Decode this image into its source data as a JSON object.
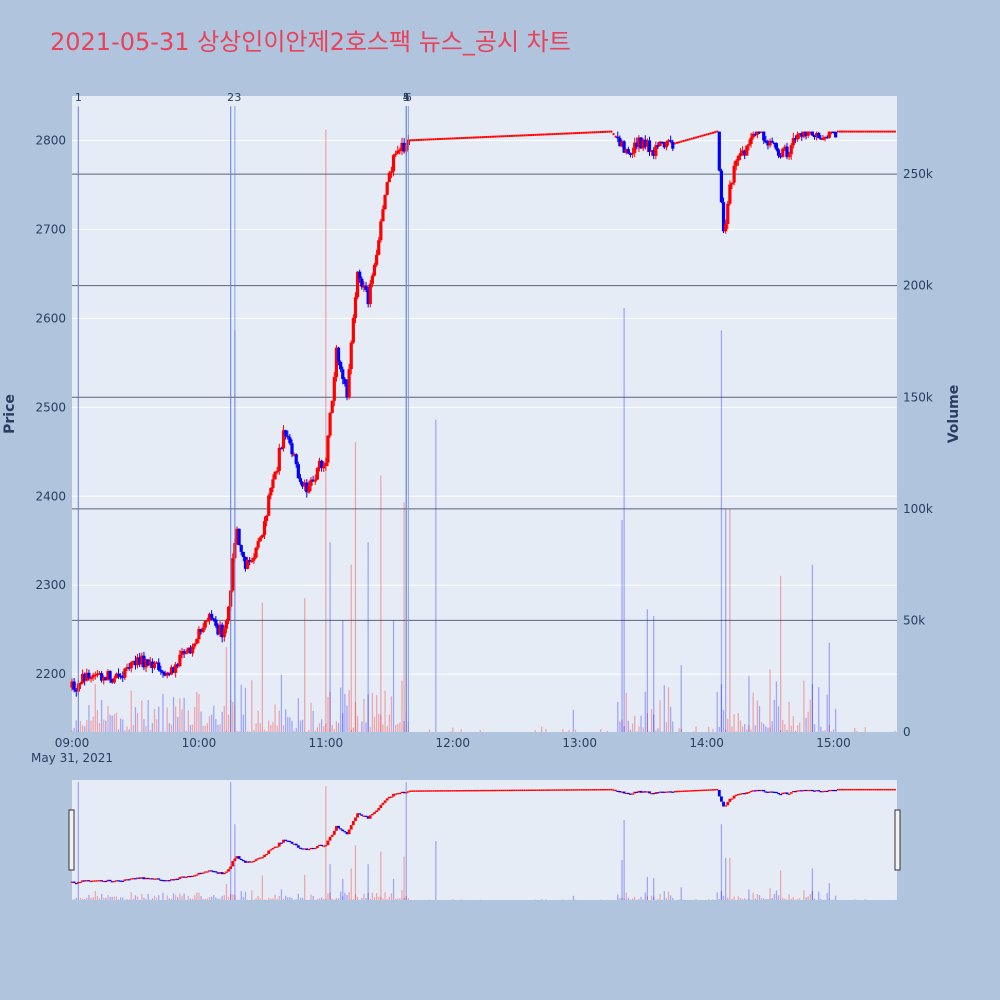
{
  "title": "2021-05-31 상상인이안제2호스팩 뉴스_공시 차트",
  "colors": {
    "background": "#b0c4de",
    "plot_bg": "#e5ecf6",
    "title": "#e8435a",
    "up": "#ff0000",
    "down": "#0000ff",
    "vol_up": "rgba(255,0,0,0.30)",
    "vol_down": "rgba(0,0,255,0.30)",
    "marker": "#6f8fd8"
  },
  "chart_data": {
    "type": "candlestick",
    "x_range": [
      "09:00",
      "15:30"
    ],
    "price_axis": {
      "label": "Price",
      "ticks": [
        2200,
        2300,
        2400,
        2500,
        2600,
        2700,
        2800
      ],
      "range": [
        2135,
        2850
      ]
    },
    "volume_axis": {
      "label": "Volume",
      "ticks": [
        "0",
        "50k",
        "100k",
        "150k",
        "200k",
        "250k"
      ],
      "tick_values": [
        0,
        50000,
        100000,
        150000,
        200000,
        250000
      ],
      "range": [
        0,
        285000
      ]
    },
    "x_ticks": [
      "09:00",
      "10:00",
      "11:00",
      "12:00",
      "13:00",
      "14:00",
      "15:00"
    ],
    "x_date_label": "May 31, 2021",
    "news_markers": [
      {
        "label": "1",
        "time": "09:03"
      },
      {
        "label": "2",
        "time": "10:15"
      },
      {
        "label": "3",
        "time": "10:17"
      },
      {
        "label": "4",
        "time": "11:38"
      },
      {
        "label": "5",
        "time": "11:38"
      },
      {
        "label": "6",
        "time": "11:39"
      }
    ],
    "price_keypoints": [
      [
        "09:00",
        2185
      ],
      [
        "09:10",
        2200
      ],
      [
        "09:20",
        2195
      ],
      [
        "09:30",
        2215
      ],
      [
        "09:45",
        2200
      ],
      [
        "09:55",
        2225
      ],
      [
        "10:05",
        2260
      ],
      [
        "10:12",
        2245
      ],
      [
        "10:18",
        2360
      ],
      [
        "10:22",
        2320
      ],
      [
        "10:30",
        2360
      ],
      [
        "10:40",
        2470
      ],
      [
        "10:50",
        2410
      ],
      [
        "11:00",
        2440
      ],
      [
        "11:05",
        2560
      ],
      [
        "11:10",
        2510
      ],
      [
        "11:15",
        2660
      ],
      [
        "11:20",
        2620
      ],
      [
        "11:25",
        2690
      ],
      [
        "11:30",
        2770
      ],
      [
        "11:38",
        2800
      ],
      [
        "13:15",
        2810
      ],
      [
        "13:22",
        2790
      ],
      [
        "13:30",
        2800
      ],
      [
        "13:35",
        2790
      ],
      [
        "14:05",
        2810
      ],
      [
        "14:08",
        2700
      ],
      [
        "14:12",
        2760
      ],
      [
        "14:18",
        2790
      ],
      [
        "14:25",
        2810
      ],
      [
        "14:35",
        2780
      ],
      [
        "14:45",
        2810
      ],
      [
        "15:00",
        2810
      ],
      [
        "15:30",
        2810
      ]
    ],
    "volume_spikes": [
      [
        "09:03",
        280000,
        "down"
      ],
      [
        "10:15",
        280000,
        "down"
      ],
      [
        "10:17",
        180000,
        "down"
      ],
      [
        "10:13",
        38000,
        "up"
      ],
      [
        "10:30",
        58000,
        "up"
      ],
      [
        "10:50",
        60000,
        "up"
      ],
      [
        "11:00",
        270000,
        "up"
      ],
      [
        "11:02",
        85000,
        "down"
      ],
      [
        "11:08",
        50000,
        "down"
      ],
      [
        "11:12",
        75000,
        "up"
      ],
      [
        "11:14",
        130000,
        "up"
      ],
      [
        "11:20",
        85000,
        "down"
      ],
      [
        "11:26",
        115000,
        "up"
      ],
      [
        "11:32",
        50000,
        "down"
      ],
      [
        "11:37",
        103000,
        "up"
      ],
      [
        "11:38",
        280000,
        "down"
      ],
      [
        "11:52",
        140000,
        "down"
      ],
      [
        "12:57",
        10000,
        "down"
      ],
      [
        "13:20",
        95000,
        "down"
      ],
      [
        "13:21",
        190000,
        "down"
      ],
      [
        "13:32",
        55000,
        "down"
      ],
      [
        "13:35",
        52000,
        "down"
      ],
      [
        "13:48",
        30000,
        "down"
      ],
      [
        "14:05",
        18000,
        "down"
      ],
      [
        "14:07",
        180000,
        "down"
      ],
      [
        "14:09",
        100000,
        "down"
      ],
      [
        "14:11",
        100000,
        "up"
      ],
      [
        "14:20",
        25000,
        "down"
      ],
      [
        "14:30",
        28000,
        "up"
      ],
      [
        "14:35",
        70000,
        "up"
      ],
      [
        "14:50",
        75000,
        "down"
      ],
      [
        "14:58",
        40000,
        "down"
      ]
    ]
  },
  "rangeslider": {
    "visible": true
  }
}
